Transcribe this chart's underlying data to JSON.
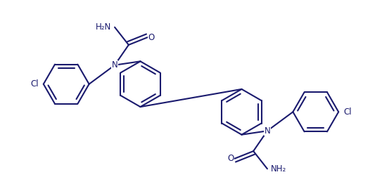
{
  "bg_color": "#ffffff",
  "line_color": "#1a1a6e",
  "line_width": 1.5,
  "figsize": [
    5.43,
    2.79
  ],
  "dpi": 100,
  "R": 0.36,
  "doff": 0.055,
  "xlim": [
    -2.7,
    2.7
  ],
  "ylim": [
    -1.55,
    1.55
  ],
  "fs": 8.5
}
